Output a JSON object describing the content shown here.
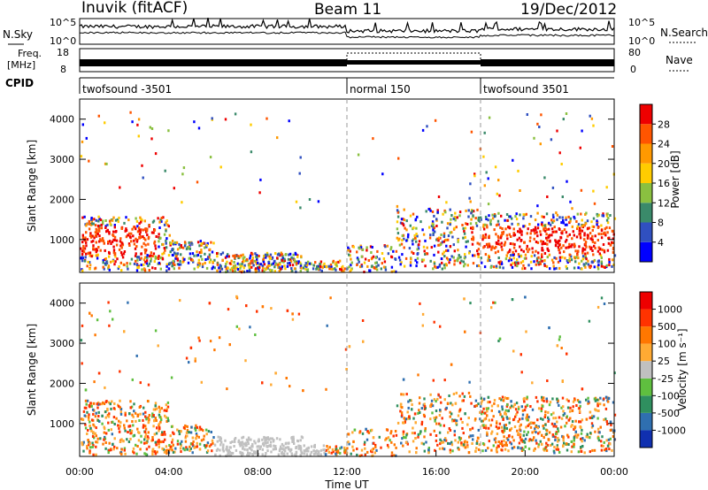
{
  "header": {
    "title": "Inuvik (fitACF)",
    "beam": "Beam 11",
    "date": "19/Dec/2012"
  },
  "top_panels": {
    "nsky_label": "N.Sky",
    "nsearch_label": "N.Search",
    "freq_label_line1": "Freq.",
    "freq_label_line2": "[MHz]",
    "nave_label": "Nave",
    "cpid_label": "CPID",
    "noise_ticks": [
      "10^5",
      "10^0"
    ],
    "freq_ticks": [
      "18",
      "8"
    ],
    "nave_ticks": [
      "80",
      "0"
    ],
    "cpid_segments": [
      {
        "label": "twofsound -3501",
        "start_h": 0,
        "end_h": 12
      },
      {
        "label": "normal 150",
        "start_h": 12,
        "end_h": 18
      },
      {
        "label": "twofsound 3501",
        "start_h": 18,
        "end_h": 24
      }
    ]
  },
  "chart_data": [
    {
      "type": "heatmap",
      "name": "power",
      "ylabel": "Slant Range [km]",
      "colorbar_label": "Power [dB]",
      "yticks": [
        "1000",
        "2000",
        "3000",
        "4000"
      ],
      "ylim": [
        180,
        4500
      ],
      "colorbar_ticks": [
        "4",
        "8",
        "12",
        "16",
        "20",
        "24",
        "28"
      ],
      "colorbar_colors": [
        "#0000ff",
        "#3050c0",
        "#3a8a6a",
        "#8ac040",
        "#ffcc00",
        "#ff9900",
        "#ff5500",
        "#ee0000"
      ]
    },
    {
      "type": "heatmap",
      "name": "velocity",
      "ylabel": "Slant Range [km]",
      "xlabel": "Time UT",
      "colorbar_label": "Velocity [m s⁻¹]",
      "yticks": [
        "1000",
        "2000",
        "3000",
        "4000"
      ],
      "ylim": [
        180,
        4500
      ],
      "colorbar_ticks": [
        "1000",
        "500",
        "100",
        "25",
        "-25",
        "-100",
        "-500",
        "-1000"
      ],
      "colorbar_colors": [
        "#1030b0",
        "#2f6fb0",
        "#2f8f5f",
        "#5fbf3f",
        "#c0c0c0",
        "#ffaa33",
        "#ff7700",
        "#ff3300",
        "#ee0000"
      ],
      "xticks": [
        "00:00",
        "04:00",
        "08:00",
        "12:00",
        "16:00",
        "20:00",
        "00:00"
      ],
      "xlim_hours": [
        0,
        24
      ],
      "dashed_markers_h": [
        12,
        18
      ]
    }
  ]
}
